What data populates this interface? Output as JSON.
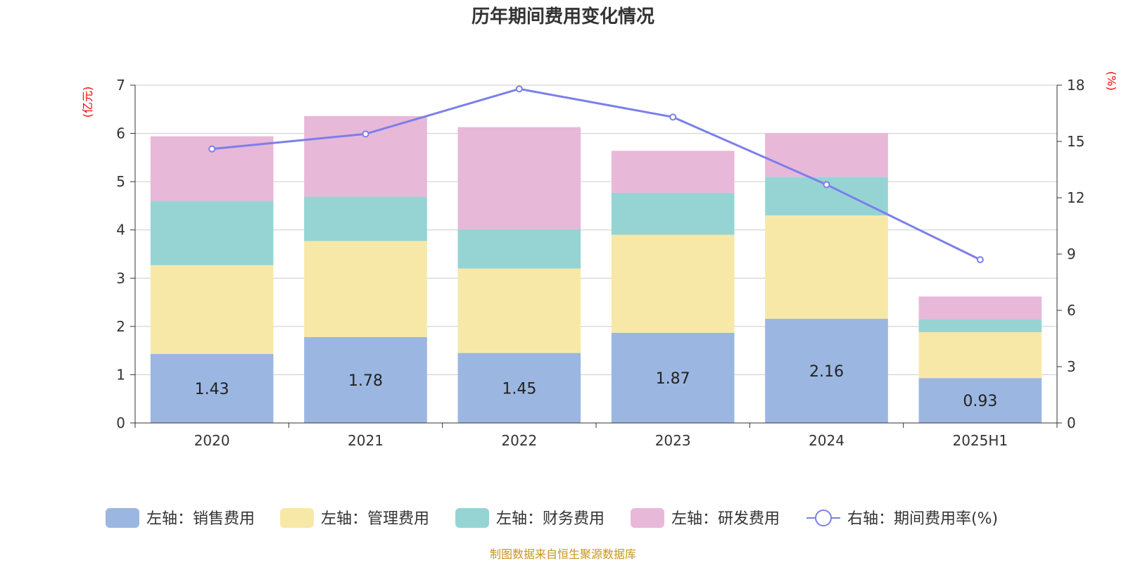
{
  "chart_data": {
    "type": "bar",
    "stacked": true,
    "title": "历年期间费用变化情况",
    "categories": [
      "2020",
      "2021",
      "2022",
      "2023",
      "2024",
      "2025H1"
    ],
    "y_left": {
      "unit": "(亿元)",
      "ylim": [
        0,
        7
      ],
      "ticks": [
        "0",
        "1",
        "2",
        "3",
        "4",
        "5",
        "6",
        "7"
      ]
    },
    "y_right": {
      "unit": "(%)",
      "ylim": [
        0,
        18
      ],
      "ticks": [
        "0",
        "3",
        "6",
        "9",
        "12",
        "15",
        "18"
      ]
    },
    "series": [
      {
        "name": "左轴：销售费用",
        "axis": "left",
        "color": "#9bb7e1",
        "values": [
          1.43,
          1.78,
          1.45,
          1.87,
          2.16,
          0.93
        ],
        "labels": [
          "1.43",
          "1.78",
          "1.45",
          "1.87",
          "2.16",
          "0.93"
        ]
      },
      {
        "name": "左轴：管理费用",
        "axis": "left",
        "color": "#f8e8a8",
        "values": [
          1.84,
          1.99,
          1.75,
          2.03,
          2.14,
          0.95
        ]
      },
      {
        "name": "左轴：财务费用",
        "axis": "left",
        "color": "#96d4d4",
        "values": [
          1.33,
          0.92,
          0.81,
          0.87,
          0.8,
          0.27
        ]
      },
      {
        "name": "左轴：研发费用",
        "axis": "left",
        "color": "#e8b8d8",
        "values": [
          1.34,
          1.67,
          2.12,
          0.87,
          0.91,
          0.47
        ]
      },
      {
        "name": "右轴：期间费用率(%)",
        "axis": "right",
        "type": "line",
        "color": "#7b7fea",
        "values": [
          14.6,
          15.4,
          17.8,
          16.3,
          12.7,
          8.7
        ]
      }
    ],
    "grid": true,
    "legend_position": "bottom"
  },
  "footer": {
    "source": "制图数据来自恒生聚源数据库"
  }
}
